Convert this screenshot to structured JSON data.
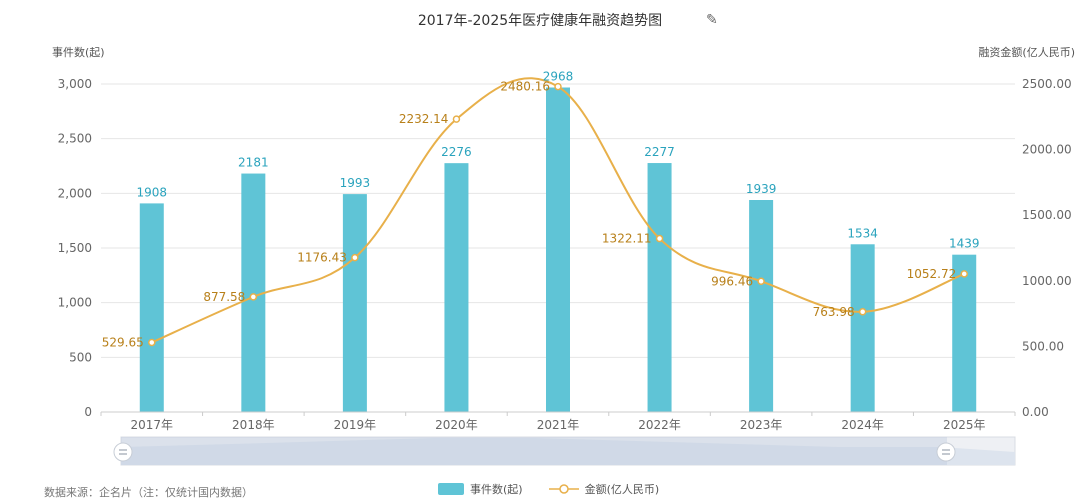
{
  "title": "2017年-2025年医疗健康年融资趋势图",
  "footer": {
    "source": "数据来源：企名片（注：仅统计国内数据）"
  },
  "icons": {
    "edit": "edit-icon"
  },
  "colors": {
    "bar": "#5fc4d6",
    "line": "#e8b04a",
    "line_label": "#b8801a",
    "bar_label": "#2aa3bd",
    "axis_text": "#666666",
    "grid": "#e6e6e6"
  },
  "chart_data": {
    "type": "bar",
    "categories": [
      "2017年",
      "2018年",
      "2019年",
      "2020年",
      "2021年",
      "2022年",
      "2023年",
      "2024年",
      "2025年"
    ],
    "series": [
      {
        "name": "事件数(起)",
        "type": "bar",
        "axis": "left",
        "values": [
          1908,
          2181,
          1993,
          2276,
          2968,
          2277,
          1939,
          1534,
          1439
        ],
        "labels": [
          "1908",
          "2181",
          "1993",
          "2276",
          "2968",
          "2277",
          "1939",
          "1534",
          "1439"
        ]
      },
      {
        "name": "金额(亿人民币)",
        "type": "line",
        "axis": "right",
        "values": [
          529.65,
          877.58,
          1176.43,
          2232.14,
          2480.16,
          1322.11,
          996.46,
          763.98,
          1052.72
        ],
        "labels": [
          "529.65",
          "877.58",
          "1176.43",
          "2232.14",
          "2480.16",
          "1322.11",
          "996.46",
          "763.98",
          "1052.72"
        ]
      }
    ],
    "y_left": {
      "label": "事件数(起)",
      "ylim": [
        0,
        3000
      ],
      "ticks": [
        0,
        500,
        1000,
        1500,
        2000,
        2500,
        3000
      ],
      "tick_labels": [
        "0",
        "500",
        "1,000",
        "1,500",
        "2,000",
        "2,500",
        "3,000"
      ]
    },
    "y_right": {
      "label": "融资金额(亿人民币)",
      "ylim": [
        0,
        2500
      ],
      "ticks": [
        0,
        500,
        1000,
        1500,
        2000,
        2500
      ],
      "tick_labels": [
        "0.00",
        "500.00",
        "1000.00",
        "1500.00",
        "2000.00",
        "2500.00"
      ]
    },
    "grid": true,
    "legend": {
      "position": "bottom",
      "entries": [
        {
          "label": "事件数(起)",
          "marker": "bar"
        },
        {
          "label": "金额(亿人民币)",
          "marker": "line"
        }
      ]
    }
  }
}
